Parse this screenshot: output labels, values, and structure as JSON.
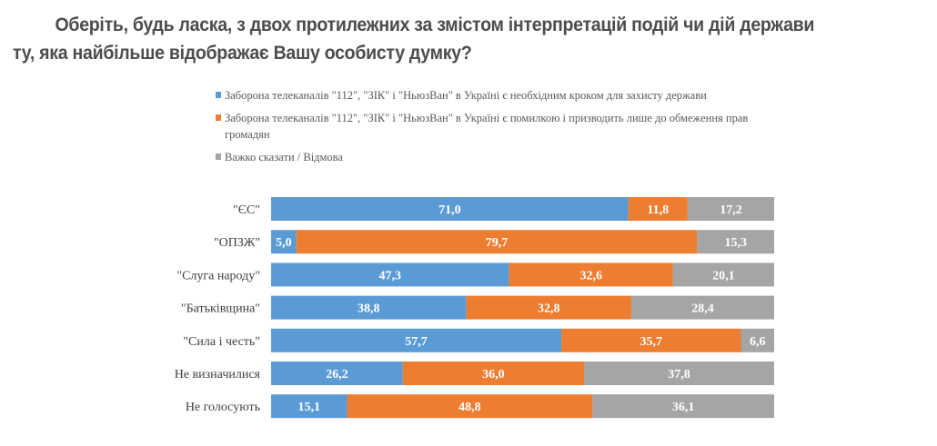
{
  "title": {
    "line1": "Оберіть, будь ласка, з двох протилежних за змістом інтерпретацій подій чи дій держави",
    "line2": "ту, яка найбільше відображає Вашу особисту думку?"
  },
  "chart_data": {
    "type": "bar",
    "orientation": "horizontal",
    "stacked": true,
    "xlim": [
      0,
      100
    ],
    "grid": false,
    "legend_position": "top",
    "categories": [
      "\"ЄС\"",
      "\"ОПЗЖ\"",
      "\"Слуга народу\"",
      "\"Батьківщина\"",
      "\"Сила і честь\"",
      "Не визначилися",
      "Не голосують"
    ],
    "series": [
      {
        "name": "Заборона телеканалів  \"112\", \"ЗІК\" і \"НьюзВан\" в Україні є необхідним  кроком для захисту держави",
        "color": "#5b9bd5",
        "values": [
          71.0,
          5.0,
          47.3,
          38.8,
          57.7,
          26.2,
          15.1
        ]
      },
      {
        "name": "Заборона телеканалів  \"112\", \"ЗІК\" і \"НьюзВан\" в Україні є помилкою і призводить лише до обмеження  прав громадян",
        "color": "#ed7d31",
        "values": [
          11.8,
          79.7,
          32.6,
          32.8,
          35.7,
          36.0,
          48.8
        ]
      },
      {
        "name": "Важко сказати  / Відмова",
        "color": "#a5a5a5",
        "values": [
          17.2,
          15.3,
          20.1,
          28.4,
          6.6,
          37.8,
          36.1
        ]
      }
    ]
  }
}
